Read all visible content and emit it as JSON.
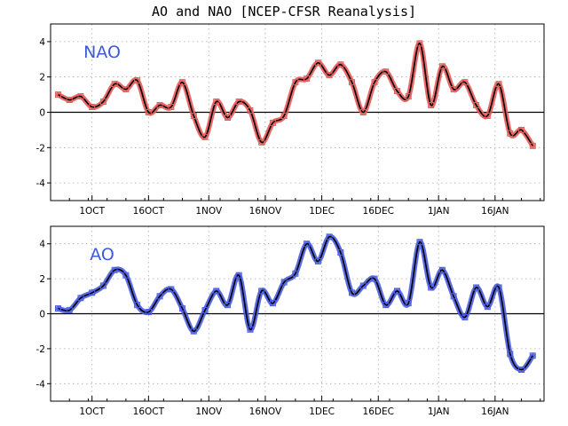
{
  "chart_data": {
    "title": "AO and NAO [NCEP-CFSR Reanalysis]",
    "x_tick_labels": [
      "1OCT",
      "16OCT",
      "1NOV",
      "16NOV",
      "1DEC",
      "16DEC",
      "1JAN",
      "16JAN"
    ],
    "panels": [
      {
        "type": "line",
        "label": "NAO",
        "label_color": "#3b5bdb",
        "marker_color": "#e85a5a",
        "line_color": "#000000",
        "ylim": [
          -5,
          5
        ],
        "yticks": [
          -4,
          -2,
          0,
          2,
          4
        ],
        "grid": true,
        "zero_line": true,
        "x": [
          "2011-09-22",
          "2011-09-25",
          "2011-09-28",
          "2011-10-01",
          "2011-10-04",
          "2011-10-07",
          "2011-10-10",
          "2011-10-13",
          "2011-10-16",
          "2011-10-19",
          "2011-10-22",
          "2011-10-25",
          "2011-10-28",
          "2011-10-31",
          "2011-11-03",
          "2011-11-06",
          "2011-11-09",
          "2011-11-12",
          "2011-11-15",
          "2011-11-18",
          "2011-11-21",
          "2011-11-24",
          "2011-11-27",
          "2011-11-30",
          "2011-12-03",
          "2011-12-06",
          "2011-12-09",
          "2011-12-12",
          "2011-12-15",
          "2011-12-18",
          "2011-12-21",
          "2011-12-24",
          "2011-12-27",
          "2011-12-30",
          "2012-01-02",
          "2012-01-05",
          "2012-01-08",
          "2012-01-11",
          "2012-01-14",
          "2012-01-17",
          "2012-01-20",
          "2012-01-23",
          "2012-01-26"
        ],
        "values": [
          1.0,
          0.7,
          0.9,
          0.3,
          0.6,
          1.6,
          1.3,
          1.8,
          0.0,
          0.4,
          0.3,
          1.7,
          -0.2,
          -1.4,
          0.6,
          -0.3,
          0.6,
          0.1,
          -1.7,
          -0.6,
          -0.2,
          1.7,
          1.9,
          2.8,
          2.1,
          2.7,
          1.7,
          0.0,
          1.7,
          2.3,
          1.2,
          0.9,
          3.9,
          0.4,
          2.6,
          1.3,
          1.7,
          0.4,
          -0.2,
          1.6,
          -1.2,
          -1.0,
          -1.9
        ]
      },
      {
        "type": "line",
        "label": "AO",
        "label_color": "#3b5bdb",
        "marker_color": "#4a5de0",
        "line_color": "#000000",
        "ylim": [
          -5,
          5
        ],
        "yticks": [
          -4,
          -2,
          0,
          2,
          4
        ],
        "grid": true,
        "zero_line": true,
        "x": [
          "2011-09-22",
          "2011-09-25",
          "2011-09-28",
          "2011-10-01",
          "2011-10-04",
          "2011-10-07",
          "2011-10-10",
          "2011-10-13",
          "2011-10-16",
          "2011-10-19",
          "2011-10-22",
          "2011-10-25",
          "2011-10-28",
          "2011-10-31",
          "2011-11-03",
          "2011-11-06",
          "2011-11-09",
          "2011-11-12",
          "2011-11-15",
          "2011-11-18",
          "2011-11-21",
          "2011-11-24",
          "2011-11-27",
          "2011-11-30",
          "2011-12-03",
          "2011-12-06",
          "2011-12-09",
          "2011-12-12",
          "2011-12-15",
          "2011-12-18",
          "2011-12-21",
          "2011-12-24",
          "2011-12-27",
          "2011-12-30",
          "2012-01-02",
          "2012-01-05",
          "2012-01-08",
          "2012-01-11",
          "2012-01-14",
          "2012-01-17",
          "2012-01-20",
          "2012-01-23",
          "2012-01-26"
        ],
        "values": [
          0.3,
          0.2,
          0.9,
          1.2,
          1.6,
          2.5,
          2.2,
          0.5,
          0.1,
          1.0,
          1.4,
          0.3,
          -1.0,
          0.2,
          1.3,
          0.5,
          2.2,
          -0.9,
          1.3,
          0.6,
          1.8,
          2.3,
          4.0,
          3.0,
          4.4,
          3.5,
          1.2,
          1.6,
          2.0,
          0.5,
          1.3,
          0.6,
          4.1,
          1.5,
          2.5,
          1.0,
          -0.2,
          1.5,
          0.4,
          1.5,
          -2.3,
          -3.2,
          -2.4
        ]
      }
    ]
  }
}
